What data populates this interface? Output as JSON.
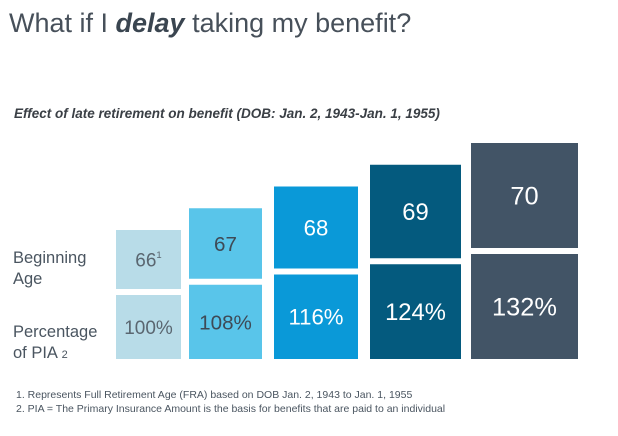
{
  "header": {
    "title_pre": "What if I ",
    "title_em": "delay",
    "title_post": " taking my benefit?",
    "subtitle": "Effect of late retirement on benefit (DOB: Jan. 2, 1943-Jan. 1, 1955)"
  },
  "rows": {
    "age_label_line1": "Beginning",
    "age_label_line2": "Age",
    "pct_label_line1": "Percentage",
    "pct_label_line2": "of PIA",
    "pct_label_sup": "2"
  },
  "chart_data": {
    "type": "bar",
    "categories": [
      "66",
      "67",
      "68",
      "69",
      "70"
    ],
    "age_labels": [
      "66",
      "67",
      "68",
      "69",
      "70"
    ],
    "age_label_superscripts": [
      "1",
      "",
      "",
      "",
      ""
    ],
    "values": [
      100,
      108,
      116,
      124,
      132
    ],
    "value_labels": [
      "100%",
      "108%",
      "116%",
      "124%",
      "132%"
    ],
    "colors": [
      "#b8dce8",
      "#59c5ea",
      "#0a99d8",
      "#045a7e",
      "#425466"
    ],
    "text_colors": [
      "#5a6670",
      "#3e4a56",
      "#ffffff",
      "#ffffff",
      "#ffffff"
    ]
  },
  "footnotes": [
    "1.  Represents Full Retirement Age (FRA) based on DOB Jan. 2, 1943 to Jan. 1, 1955",
    "2.  PIA = The Primary Insurance Amount is the basis for benefits that are paid to an individual"
  ]
}
